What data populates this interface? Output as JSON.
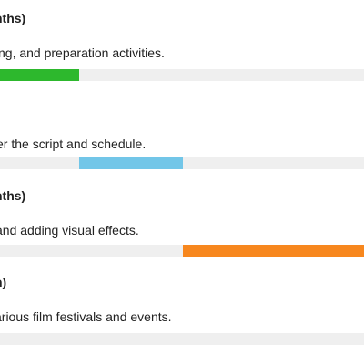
{
  "phases": [
    {
      "title": "nths)",
      "description": "ting, and preparation activities.",
      "color": "#2db82d",
      "start_fraction": 0.0,
      "end_fraction": 0.2175
    },
    {
      "title": "",
      "description": "er the script and schedule.",
      "color": "#72c6e8",
      "start_fraction": 0.2175,
      "end_fraction": 0.5025
    },
    {
      "title": "nths)",
      "description": "and adding visual effects.",
      "color": "#f7871e",
      "start_fraction": 0.5025,
      "end_fraction": 1.0
    },
    {
      "title": "h)",
      "description": "arious film festivals and events.",
      "color": "#cccccc",
      "start_fraction": 1.0,
      "end_fraction": 1.0
    }
  ]
}
